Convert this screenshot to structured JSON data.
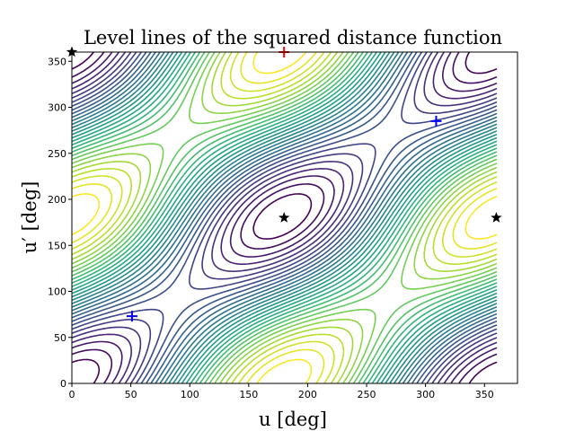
{
  "chart_data": {
    "type": "contour",
    "title": "Level lines of the squared distance function",
    "xlabel": "u [deg]",
    "ylabel": "u′ [deg]",
    "xlim": [
      0,
      378
    ],
    "ylim": [
      0,
      360
    ],
    "xticks": [
      0,
      50,
      100,
      150,
      200,
      250,
      300,
      350
    ],
    "yticks": [
      0,
      50,
      100,
      150,
      200,
      250,
      300,
      350
    ],
    "grid": false,
    "colormap": "viridis",
    "level_count": 30,
    "markers": [
      {
        "shape": "plus",
        "color": "#0000ff",
        "x": 51,
        "y": 73
      },
      {
        "shape": "plus",
        "color": "#0000ff",
        "x": 309,
        "y": 285
      },
      {
        "shape": "plus",
        "color": "#ff0000",
        "x": 180,
        "y": 360
      },
      {
        "shape": "star",
        "color": "#000000",
        "x": 180,
        "y": 180
      },
      {
        "shape": "star",
        "color": "#000000",
        "x": 360,
        "y": 180
      },
      {
        "shape": "star",
        "color": "#000000",
        "x": 0,
        "y": 360
      }
    ]
  }
}
